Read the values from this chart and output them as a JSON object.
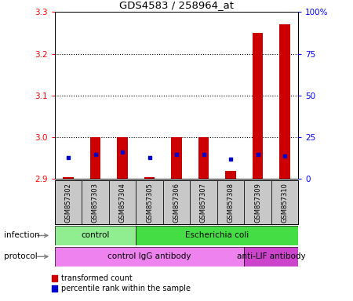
{
  "title": "GDS4583 / 258964_at",
  "samples": [
    "GSM857302",
    "GSM857303",
    "GSM857304",
    "GSM857305",
    "GSM857306",
    "GSM857307",
    "GSM857308",
    "GSM857309",
    "GSM857310"
  ],
  "transformed_count": [
    2.905,
    3.0,
    3.0,
    2.905,
    3.0,
    3.0,
    2.92,
    3.25,
    3.27
  ],
  "percentile_rank": [
    13,
    15,
    16,
    13,
    15,
    15,
    12,
    15,
    14
  ],
  "ylim_left": [
    2.9,
    3.3
  ],
  "ylim_right": [
    0,
    100
  ],
  "yticks_left": [
    2.9,
    3.0,
    3.1,
    3.2,
    3.3
  ],
  "yticks_right": [
    0,
    25,
    50,
    75,
    100
  ],
  "ytick_labels_right": [
    "0",
    "25",
    "50",
    "75",
    "100%"
  ],
  "infection_groups": [
    {
      "label": "control",
      "start": 0,
      "end": 2,
      "color": "#90ee90"
    },
    {
      "label": "Escherichia coli",
      "start": 3,
      "end": 8,
      "color": "#44dd44"
    }
  ],
  "protocol_groups": [
    {
      "label": "control IgG antibody",
      "start": 0,
      "end": 6,
      "color": "#ee82ee"
    },
    {
      "label": "anti-LIF antibody",
      "start": 7,
      "end": 8,
      "color": "#cc44cc"
    }
  ],
  "bar_color": "#cc0000",
  "dot_color": "#0000cc",
  "bar_bottom": 2.9,
  "bg_color": "#ffffff",
  "sample_bg": "#c8c8c8",
  "legend_red": "transformed count",
  "legend_blue": "percentile rank within the sample",
  "infection_label": "infection",
  "protocol_label": "protocol"
}
